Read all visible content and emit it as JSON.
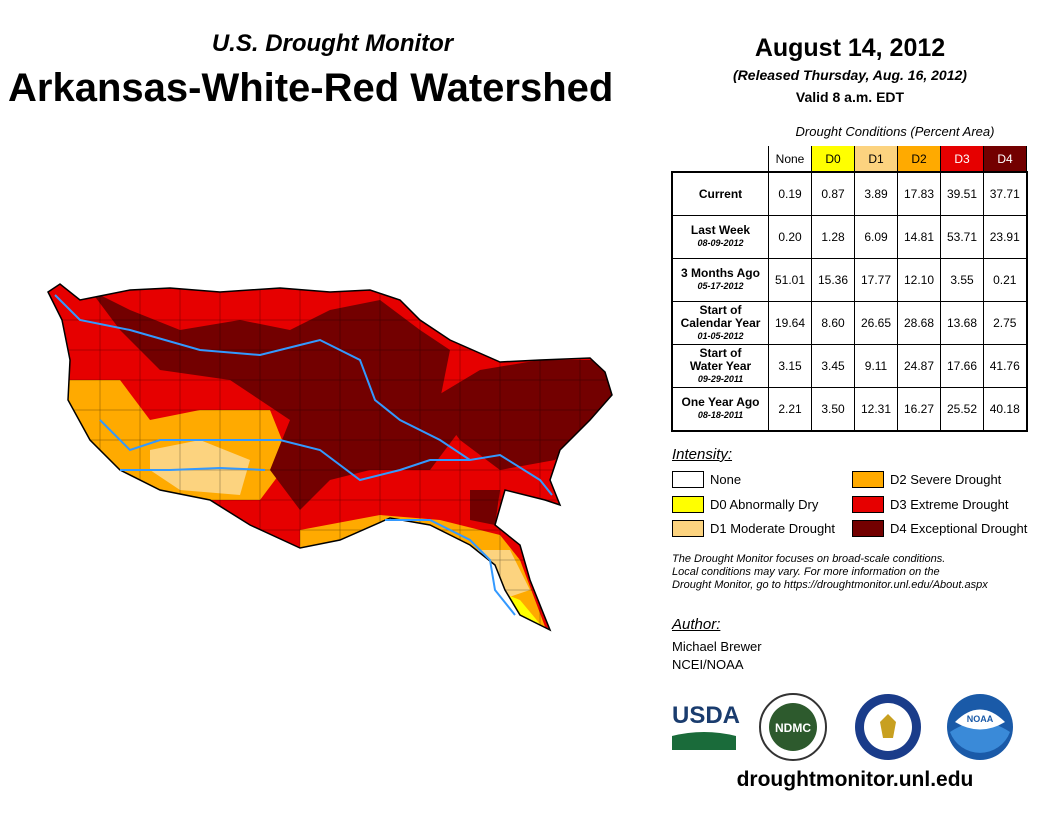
{
  "header": {
    "subtitle": "U.S. Drought Monitor",
    "title": "Arkansas-White-Red Watershed",
    "date": "August 14, 2012",
    "released": "(Released Thursday, Aug. 16, 2012)",
    "valid": "Valid 8 a.m. EDT"
  },
  "table": {
    "caption": "Drought Conditions (Percent Area)",
    "columns": [
      "None",
      "D0",
      "D1",
      "D2",
      "D3",
      "D4"
    ],
    "rows": [
      {
        "label": "Current",
        "label2": "",
        "date": "",
        "values": [
          "0.19",
          "0.87",
          "3.89",
          "17.83",
          "39.51",
          "37.71"
        ]
      },
      {
        "label": "Last Week",
        "label2": "",
        "date": "08-09-2012",
        "values": [
          "0.20",
          "1.28",
          "6.09",
          "14.81",
          "53.71",
          "23.91"
        ]
      },
      {
        "label": "3 Months Ago",
        "label2": "",
        "date": "05-17-2012",
        "values": [
          "51.01",
          "15.36",
          "17.77",
          "12.10",
          "3.55",
          "0.21"
        ]
      },
      {
        "label": "Start of",
        "label2": "Calendar Year",
        "date": "01-05-2012",
        "values": [
          "19.64",
          "8.60",
          "26.65",
          "28.68",
          "13.68",
          "2.75"
        ]
      },
      {
        "label": "Start of",
        "label2": "Water Year",
        "date": "09-29-2011",
        "values": [
          "3.15",
          "3.45",
          "9.11",
          "24.87",
          "17.66",
          "41.76"
        ]
      },
      {
        "label": "One Year Ago",
        "label2": "",
        "date": "08-18-2011",
        "values": [
          "2.21",
          "3.50",
          "12.31",
          "16.27",
          "25.52",
          "40.18"
        ]
      }
    ]
  },
  "colors": {
    "none": "#ffffff",
    "d0": "#ffff00",
    "d1": "#fcd37f",
    "d2": "#ffaa00",
    "d3": "#e60000",
    "d4": "#730000",
    "river": "#3399ff"
  },
  "legend": {
    "heading": "Intensity:",
    "items": [
      "None",
      "D0 Abnormally Dry",
      "D1 Moderate Drought",
      "D2 Severe Drought",
      "D3 Extreme Drought",
      "D4 Exceptional Drought"
    ]
  },
  "note": {
    "line1": "The Drought Monitor focuses on broad-scale conditions.",
    "line2": "Local conditions may vary. For more information on the",
    "line3": "Drought Monitor, go to https://droughtmonitor.unl.edu/About.aspx"
  },
  "author": {
    "heading": "Author:",
    "name": "Michael Brewer",
    "org": "NCEI/NOAA"
  },
  "logos": {
    "usda": "USDA",
    "ndmc": "NDMC",
    "noaa": "NOAA"
  },
  "footer": {
    "url": "droughtmonitor.unl.edu"
  }
}
